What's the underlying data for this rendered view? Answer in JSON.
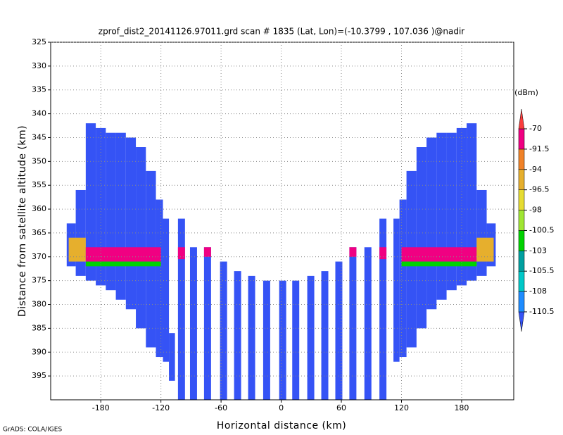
{
  "chart_data": {
    "type": "swath",
    "title": "zprof_dist2_20141126.97011.grd  scan # 1835  (Lat, Lon)=(-10.3799 , 107.036 )@nadir",
    "xlabel": "Horizontal distance (km)",
    "ylabel": "Distance from satellite altitude (km)",
    "source": "GrADS: COLA/IGES",
    "xlim": [
      -230,
      232
    ],
    "ylim": [
      325,
      400
    ],
    "xticks": [
      -180,
      -120,
      -60,
      0,
      60,
      120,
      180
    ],
    "yticks": [
      325,
      330,
      335,
      340,
      345,
      350,
      355,
      360,
      365,
      370,
      375,
      380,
      385,
      390,
      395
    ],
    "grid": true,
    "colorbar": {
      "label": "(dBm)",
      "levels": [
        -110.5,
        -108,
        -105.5,
        -103,
        -100.5,
        -98,
        -96.5,
        -94,
        -91.5,
        -70
      ],
      "colors": [
        "#3553f5",
        "#1e8cff",
        "#00c8c8",
        "#00a0a0",
        "#00d200",
        "#a0e632",
        "#e6dc32",
        "#e6af2d",
        "#f08228",
        "#f00082",
        "#fa3c3c"
      ]
    },
    "columns": {
      "x_left": [
        -214,
        -205,
        -195,
        -185,
        -175,
        -165,
        -155,
        -145,
        -135,
        -125,
        -118,
        -112,
        -103,
        -91,
        -77,
        -61,
        -47,
        -33,
        -18,
        -2,
        11,
        26,
        40,
        54,
        68,
        83,
        98,
        112,
        118,
        125,
        135,
        145,
        155,
        165,
        175,
        185,
        195,
        205
      ],
      "x_right": [
        -205,
        -195,
        -185,
        -175,
        -165,
        -155,
        -145,
        -135,
        -125,
        -118,
        -112,
        -106,
        -96,
        -84,
        -70,
        -54,
        -40,
        -26,
        -11,
        5,
        18,
        33,
        47,
        61,
        75,
        90,
        105,
        118,
        125,
        135,
        145,
        155,
        165,
        175,
        185,
        195,
        205,
        214
      ],
      "top": [
        363,
        356,
        342,
        343,
        344,
        344,
        345,
        347,
        352,
        358,
        362,
        386,
        362,
        368,
        368,
        371,
        373,
        374,
        375,
        375,
        375,
        374,
        373,
        371,
        368,
        368,
        362,
        362,
        358,
        352,
        347,
        345,
        344,
        344,
        343,
        342,
        356,
        363
      ],
      "bottom": [
        372,
        374,
        375,
        376,
        377,
        379,
        381,
        385,
        389,
        391,
        392,
        396,
        400,
        400,
        400,
        400,
        400,
        400,
        400,
        400,
        400,
        400,
        400,
        400,
        400,
        400,
        400,
        392,
        391,
        389,
        385,
        381,
        379,
        377,
        376,
        375,
        374,
        372
      ],
      "values": [
        -112,
        -112,
        -112,
        -112,
        -112,
        -112,
        -112,
        -112,
        -112,
        -112,
        -112,
        -112,
        -112,
        -112,
        -112,
        -112,
        -112,
        -112,
        -112,
        -112,
        -112,
        -112,
        -112,
        -112,
        -112,
        -112,
        -112,
        -112,
        -112,
        -112,
        -112,
        -112,
        -112,
        -112,
        -112,
        -112,
        -112,
        -112
      ]
    },
    "layer": {
      "x_left": [
        -212,
        -195,
        -195,
        -103,
        -77,
        68,
        98,
        120,
        120,
        195
      ],
      "x_right": [
        -195,
        -120,
        -120,
        -96,
        -70,
        75,
        105,
        195,
        195,
        212
      ],
      "top": [
        366,
        368,
        371,
        368,
        368,
        368,
        368,
        368,
        371,
        366
      ],
      "bottom": [
        371,
        371,
        372,
        370.5,
        370,
        370,
        370.5,
        371,
        372,
        371
      ],
      "values": [
        -96.5,
        -91.5,
        -103,
        -91.5,
        -91.5,
        -91.5,
        -91.5,
        -91.5,
        -103,
        -96.5
      ]
    }
  }
}
